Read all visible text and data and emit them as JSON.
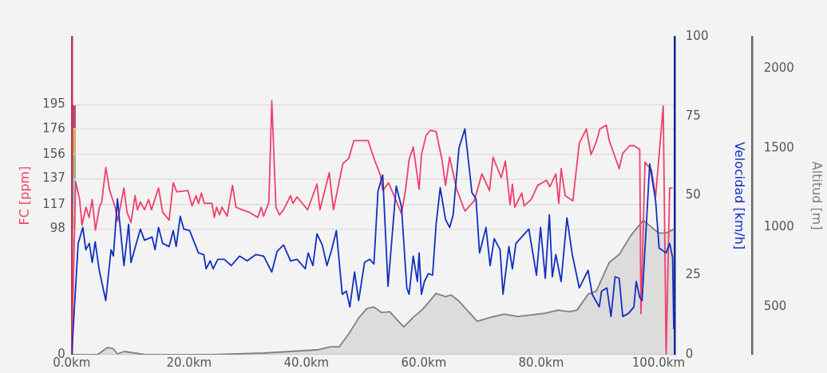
{
  "chart_data": {
    "type": "line",
    "ylabel": "FC [ppm]",
    "y2label": "Velocidad [km/h]",
    "y3label": "Altitud [m]",
    "xlim": [
      0,
      102.7
    ],
    "xticks": [
      {
        "value": 0,
        "label": "0.0km"
      },
      {
        "value": 20,
        "label": "20.0km"
      },
      {
        "value": 40,
        "label": "40.0km"
      },
      {
        "value": 60,
        "label": "60.0km"
      },
      {
        "value": 80,
        "label": "80.0km"
      },
      {
        "value": 100,
        "label": "100.0km"
      }
    ],
    "ylim": [
      0,
      248
    ],
    "yticks": [
      0,
      98,
      117,
      137,
      156,
      176,
      195
    ],
    "y2lim": [
      0,
      100
    ],
    "y2ticks": [
      0,
      25,
      50,
      75,
      100
    ],
    "y3lim": [
      200,
      2200
    ],
    "y3ticks": [
      500,
      1000,
      1500,
      2000
    ],
    "grid": "y",
    "marker": "none",
    "line_style": "solid",
    "series": [
      {
        "type": "area",
        "axis": "y3",
        "color": "#808080",
        "x": [
          0,
          1.35,
          4.4,
          6.1,
          7.0,
          7.8,
          9.0,
          12.5,
          23.9,
          32.7,
          41.8,
          44.1,
          45.6,
          47.2,
          48.9,
          50.3,
          51.5,
          52.8,
          54.2,
          55.3,
          56.6,
          58.2,
          59.8,
          62.1,
          63.7,
          64.7,
          65.9,
          69.1,
          71.4,
          73.7,
          76.0,
          80.6,
          82.9,
          84.8,
          86.1,
          88.0,
          89.4,
          91.6,
          93.3,
          95.3,
          97.4,
          100.0,
          101.3,
          102.7
        ],
        "values": [
          200,
          200,
          200,
          245,
          240,
          205,
          220,
          200,
          200,
          210,
          230,
          250,
          250,
          330,
          430,
          490,
          500,
          465,
          470,
          425,
          375,
          435,
          485,
          585,
          565,
          575,
          540,
          410,
          435,
          455,
          440,
          460,
          480,
          470,
          480,
          580,
          600,
          780,
          830,
          950,
          1045,
          965,
          965,
          990
        ]
      },
      {
        "axis": "y",
        "color": "#f0406a",
        "x": [
          0,
          0.67,
          1.35,
          1.75,
          2.43,
          2.96,
          3.5,
          4.04,
          4.72,
          5.12,
          5.8,
          6.47,
          7.41,
          7.82,
          8.89,
          9.43,
          10.1,
          10.8,
          11.2,
          11.7,
          12.4,
          13.1,
          13.6,
          14.8,
          15.5,
          16.6,
          17.3,
          17.9,
          19.8,
          20.5,
          21.2,
          21.6,
          22.1,
          22.6,
          23.9,
          24.3,
          24.7,
          25.2,
          25.6,
          26.5,
          27.4,
          28.0,
          29.0,
          30.3,
          31.7,
          32.3,
          32.7,
          33.6,
          34.1,
          34.8,
          35.4,
          36.1,
          37.3,
          37.7,
          38.4,
          40.2,
          41.8,
          42.3,
          43.9,
          44.6,
          45.1,
          46.2,
          47.2,
          48.1,
          48.9,
          50.5,
          51.6,
          52.6,
          53.0,
          54.0,
          56.2,
          56.9,
          57.5,
          58.2,
          59.2,
          59.6,
          60.4,
          61.1,
          62.1,
          63.1,
          63.7,
          64.4,
          65.6,
          67.0,
          68.6,
          69.9,
          71.2,
          71.8,
          73.2,
          73.9,
          74.7,
          75.1,
          75.5,
          76.7,
          77.1,
          78.3,
          79.4,
          80.9,
          81.5,
          82.5,
          83.0,
          83.4,
          84.1,
          85.4,
          86.5,
          87.7,
          88.5,
          89.4,
          90.0,
          91.1,
          91.6,
          93.3,
          93.9,
          95.1,
          95.8,
          96.8,
          97.0,
          97.7,
          98.8,
          99.5,
          100.8,
          101.3,
          101.9,
          102.4
        ],
        "values": [
          0,
          135,
          121,
          101,
          115,
          107,
          121,
          97,
          115,
          119,
          146,
          128,
          115,
          104,
          130,
          111,
          103,
          124,
          113,
          119,
          113,
          121,
          113,
          130,
          111,
          105,
          134,
          127,
          128,
          116,
          124,
          118,
          126,
          118,
          118,
          107,
          115,
          109,
          115,
          108,
          132,
          115,
          113,
          111,
          107,
          115,
          108,
          119,
          198,
          115,
          109,
          113,
          124,
          118,
          123,
          113,
          133,
          113,
          142,
          113,
          124,
          149,
          153,
          167,
          167,
          167,
          152,
          140,
          128,
          134,
          110,
          129,
          152,
          162,
          129,
          156,
          171,
          175,
          174,
          152,
          132,
          154,
          129,
          112,
          120,
          141,
          128,
          154,
          138,
          151,
          117,
          133,
          115,
          126,
          116,
          121,
          132,
          136,
          131,
          141,
          118,
          145,
          124,
          120,
          165,
          176,
          156,
          166,
          176,
          179,
          167,
          145,
          157,
          163,
          163,
          160,
          32,
          150,
          144,
          123,
          194,
          0,
          130,
          130
        ]
      },
      {
        "axis": "y2",
        "color": "#1030c0",
        "x": [
          0,
          1.1,
          1.9,
          2.4,
          3.0,
          3.5,
          4.0,
          4.7,
          5.8,
          6.7,
          7.1,
          7.8,
          8.9,
          9.7,
          10.1,
          11.7,
          12.4,
          13.7,
          14.2,
          14.8,
          15.5,
          16.6,
          17.3,
          17.8,
          18.5,
          19.1,
          20.1,
          21.6,
          22.5,
          22.9,
          23.6,
          24.1,
          24.9,
          26.0,
          27.2,
          28.6,
          29.9,
          31.4,
          32.7,
          34.1,
          35.0,
          36.1,
          37.3,
          38.4,
          39.8,
          40.3,
          41.1,
          41.8,
          42.7,
          43.5,
          44.3,
          45.1,
          46.1,
          46.8,
          47.4,
          48.2,
          48.9,
          49.9,
          50.8,
          51.5,
          52.2,
          53.0,
          53.9,
          55.3,
          56.2,
          57.1,
          57.5,
          58.2,
          58.9,
          59.2,
          59.6,
          60.1,
          60.8,
          61.5,
          62.1,
          62.8,
          63.7,
          64.4,
          65.0,
          66.0,
          67.0,
          68.2,
          68.9,
          69.5,
          70.6,
          71.3,
          72.0,
          73.0,
          73.5,
          74.5,
          75.1,
          75.7,
          77.9,
          79.2,
          79.9,
          80.7,
          81.4,
          81.9,
          82.5,
          83.4,
          84.4,
          85.3,
          86.5,
          88.0,
          88.7,
          89.9,
          90.3,
          91.2,
          91.9,
          92.6,
          93.3,
          93.9,
          94.9,
          95.8,
          96.2,
          96.8,
          97.2,
          98.5,
          99.5,
          100.1,
          101.3,
          101.9,
          102.4,
          102.6
        ],
        "values": [
          0,
          35,
          40,
          33,
          35,
          29,
          35.5,
          26.5,
          17,
          33,
          31,
          49,
          28,
          41,
          29,
          39.5,
          36,
          37,
          33,
          40,
          35,
          34,
          39,
          34,
          43.5,
          39.5,
          39,
          32,
          31.5,
          27,
          29.5,
          27,
          30,
          30,
          28,
          31,
          29.5,
          31.5,
          31,
          26,
          32.5,
          34.5,
          29.5,
          30,
          27,
          32,
          28,
          38,
          34.5,
          28,
          33,
          39,
          19,
          20,
          15,
          26,
          17,
          29,
          30,
          28.5,
          51.5,
          56.5,
          21.5,
          53,
          46.5,
          21,
          19,
          31,
          23,
          32,
          19,
          23,
          25.5,
          25,
          41,
          52.5,
          42.5,
          40,
          44,
          65,
          71,
          51,
          49,
          32,
          40,
          28,
          36.5,
          33,
          19,
          34,
          27,
          35,
          39.5,
          25,
          40,
          24,
          44,
          24.5,
          31.5,
          23,
          43,
          31.5,
          21,
          26.5,
          19,
          15,
          20,
          21,
          12,
          24.5,
          24,
          12,
          13,
          15,
          23,
          18,
          17,
          60,
          48.5,
          33.5,
          32,
          35,
          30.5,
          8
        ]
      }
    ]
  }
}
